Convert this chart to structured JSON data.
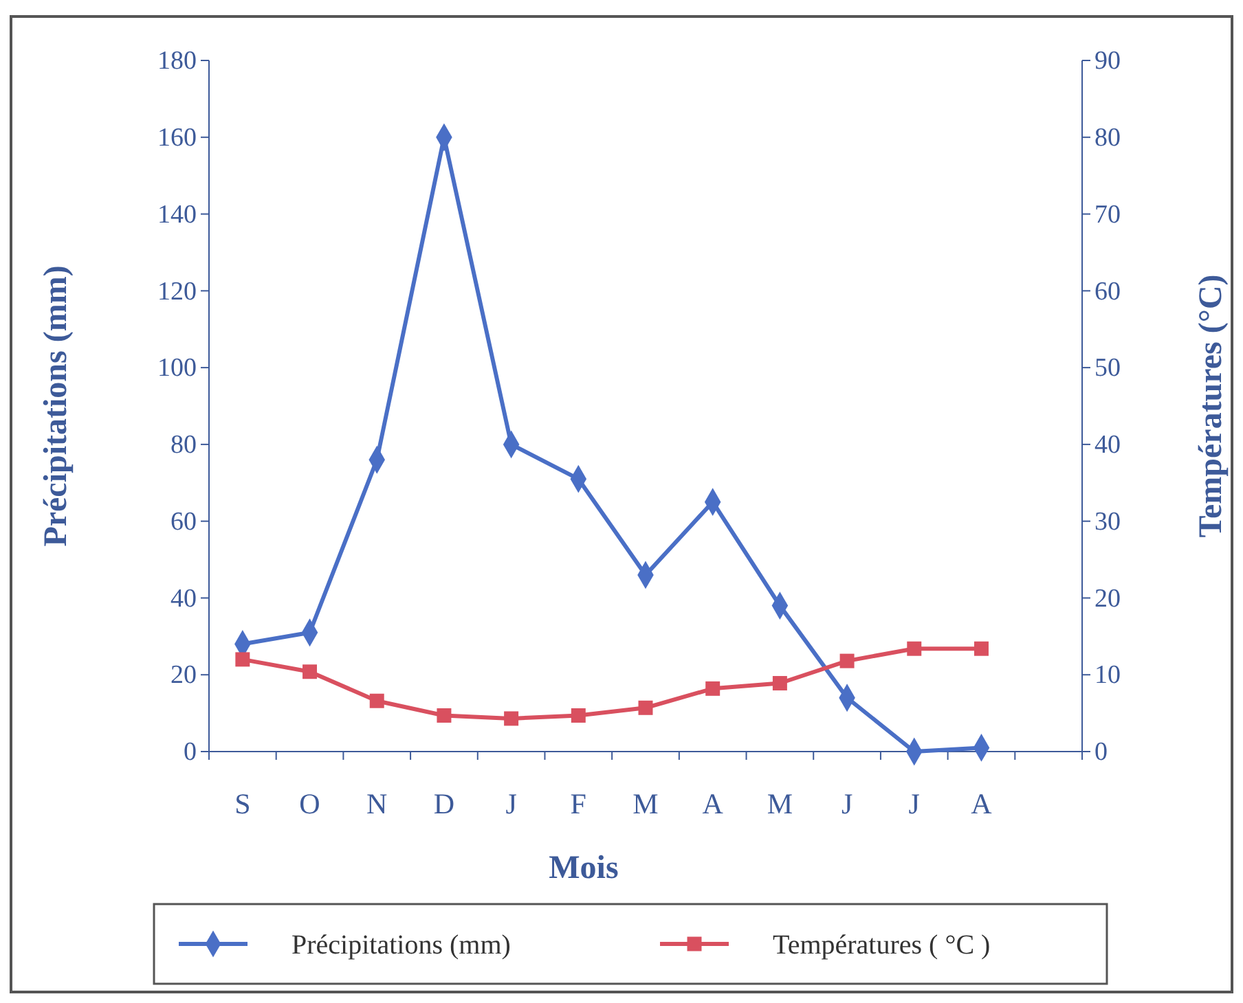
{
  "chart_data": {
    "type": "line",
    "xlabel": "Mois",
    "ylabel": "Précipitations (mm)",
    "y2label": "Températures (°C)",
    "categories": [
      "S",
      "O",
      "N",
      "D",
      "J",
      "F",
      "M",
      "A",
      "M",
      "J",
      "J",
      "A"
    ],
    "series": [
      {
        "name": "Précipitations (mm)",
        "color": "#4a6fc6",
        "marker": "diamond",
        "values": [
          28,
          31,
          76,
          160,
          80,
          71,
          46,
          65,
          38,
          14,
          0,
          1
        ]
      },
      {
        "name": "Températures ( °C )",
        "color": "#d9505f",
        "marker": "square",
        "axis": "y2",
        "values": [
          12,
          10.4,
          6.6,
          4.7,
          4.3,
          4.7,
          5.7,
          8.2,
          8.9,
          11.8,
          13.4,
          13.4
        ]
      }
    ],
    "ylim": [
      0,
      180
    ],
    "yticks": [
      0,
      20,
      40,
      60,
      80,
      100,
      120,
      140,
      160,
      180
    ],
    "y2lim": [
      0,
      90
    ],
    "y2ticks": [
      0,
      10,
      20,
      30,
      40,
      50,
      60,
      70,
      80,
      90
    ],
    "grid": false,
    "legend": "bottom",
    "line_style": "solid"
  }
}
